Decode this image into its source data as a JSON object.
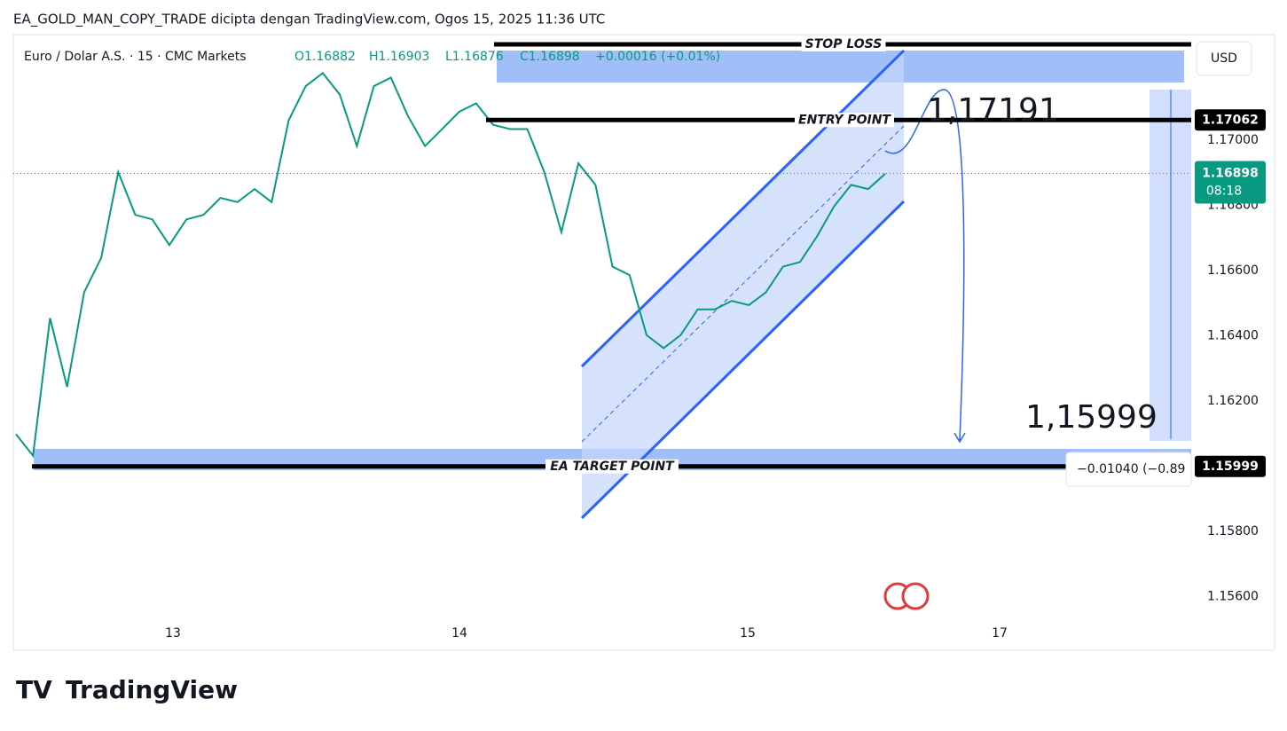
{
  "header": {
    "title": "EA_GOLD_MAN_COPY_TRADE dicipta dengan TradingView.com, Ogos 15, 2025 11:36 UTC"
  },
  "legend": {
    "symbol": "Euro / Dolar A.S. · 15 · CMC Markets",
    "open": "O1.16882",
    "high": "H1.16903",
    "low": "L1.16876",
    "close": "C1.16898",
    "change": "+0.00016 (+0.01%)"
  },
  "price_axis": {
    "currency": "USD",
    "ylim": [
      1.15435,
      1.17324
    ],
    "ticks": [
      {
        "value": 1.17,
        "label": "1.17000"
      },
      {
        "value": 1.168,
        "label": "1.16800"
      },
      {
        "value": 1.166,
        "label": "1.16600"
      },
      {
        "value": 1.164,
        "label": "1.16400"
      },
      {
        "value": 1.162,
        "label": "1.16200"
      },
      {
        "value": 1.158,
        "label": "1.15800"
      },
      {
        "value": 1.156,
        "label": "1.15600"
      }
    ]
  },
  "time_axis": {
    "labels": [
      "13",
      "14",
      "15",
      "17"
    ]
  },
  "price_series": {
    "color": "#089981",
    "values": [
      1.16098,
      1.16032,
      1.16454,
      1.16243,
      1.16533,
      1.16639,
      1.16902,
      1.16771,
      1.16757,
      1.16678,
      1.16757,
      1.16771,
      1.16823,
      1.1681,
      1.1685,
      1.1681,
      1.17061,
      1.17166,
      1.17206,
      1.1714,
      1.16982,
      1.17166,
      1.17192,
      1.17074,
      1.16982,
      1.17034,
      1.17087,
      1.17113,
      1.17047,
      1.17034,
      1.17034,
      1.16902,
      1.16718,
      1.16929,
      1.16863,
      1.16612,
      1.16586,
      1.16402,
      1.16362,
      1.16402,
      1.16481,
      1.16481,
      1.16507,
      1.16494,
      1.16533,
      1.16612,
      1.16626,
      1.16705,
      1.16797,
      1.16863,
      1.1685,
      1.16897
    ]
  },
  "drawings": {
    "stop_loss": "STOP LOSS",
    "entry_point": "ENTRY POINT",
    "target_point": "EA TARGET POINT",
    "entry_annotation": "1,17191",
    "target_annotation": "1,15999",
    "measure": "−0.01040 (−0.89"
  },
  "price_labels": {
    "entry": {
      "value": 1.17062,
      "label": "1.17062"
    },
    "last": {
      "value": 1.16898,
      "label": "1.16898"
    },
    "countdown": "08:18",
    "target": {
      "value": 1.15999,
      "label": "1.15999"
    }
  },
  "footer": {
    "brand": "TradingView"
  }
}
